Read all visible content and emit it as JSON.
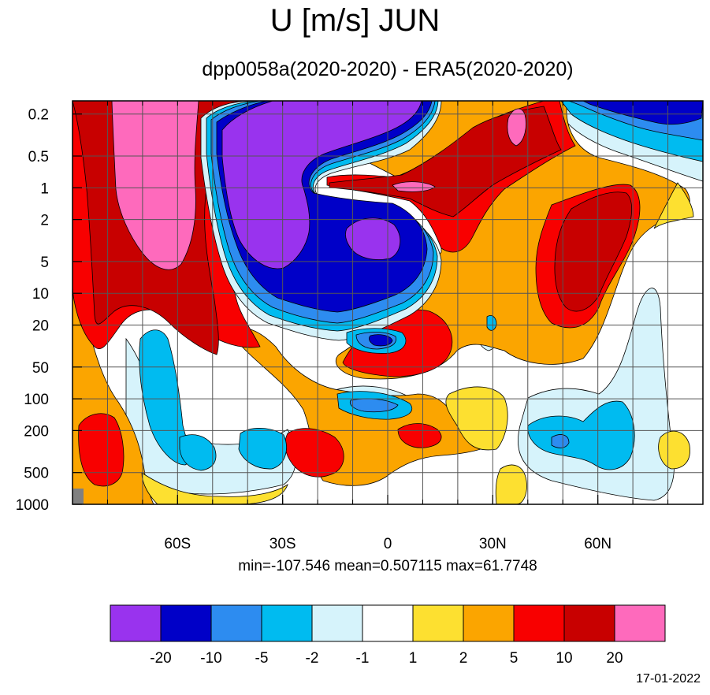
{
  "title": "U [m/s] JUN",
  "subtitle": "dpp0058a(2020-2020) - ERA5(2020-2020)",
  "stats": "min=-107.546   mean=0.507115   max=61.7748",
  "date": "17-01-2022",
  "chart_data": {
    "type": "heatmap",
    "title": "U [m/s] JUN",
    "subtitle": "dpp0058a(2020-2020) - ERA5(2020-2020)",
    "xlabel": "",
    "ylabel": "",
    "x_ticks": [
      "60S",
      "30S",
      "0",
      "30N",
      "60N"
    ],
    "x_tick_values": [
      -60,
      -30,
      0,
      30,
      60
    ],
    "xlim": [
      -90,
      90
    ],
    "y_scale": "log",
    "y_inverted": true,
    "y_ticks": [
      "0.2",
      "0.5",
      "1",
      "2",
      "5",
      "10",
      "20",
      "50",
      "100",
      "200",
      "500",
      "1000"
    ],
    "y_tick_values": [
      0.2,
      0.5,
      1,
      2,
      5,
      10,
      20,
      50,
      100,
      200,
      500,
      1000
    ],
    "ylim": [
      0.15,
      1000
    ],
    "grid": true,
    "stats": {
      "min": -107.546,
      "mean": 0.507115,
      "max": 61.7748
    },
    "colorbar": {
      "levels": [
        "-20",
        "-10",
        "-5",
        "-2",
        "-1",
        "1",
        "2",
        "5",
        "10",
        "20"
      ],
      "colors": [
        "#9933ee",
        "#0000c8",
        "#2d8cf0",
        "#00bbf0",
        "#d6f3fb",
        "#ffffff",
        "#fde030",
        "#fba500",
        "#f80000",
        "#c80000",
        "#fe6abc"
      ]
    },
    "regions": [
      {
        "level": "20+",
        "lat_range": [
          -77,
          -50
        ],
        "p_range": [
          0.15,
          4
        ]
      },
      {
        "level": "10 to 20",
        "lat_range": [
          -88,
          -40
        ],
        "p_range": [
          0.15,
          30
        ]
      },
      {
        "level": "-20-",
        "lat_range": [
          -38,
          10
        ],
        "p_range": [
          0.15,
          8
        ]
      },
      {
        "level": "-10 to -20",
        "lat_range": [
          -40,
          15
        ],
        "p_range": [
          0.15,
          15
        ]
      },
      {
        "level": "10 to 20",
        "lat_range": [
          -18,
          50
        ],
        "p_range": [
          0.8,
          4
        ]
      },
      {
        "level": "20+",
        "lat_range": [
          2,
          14
        ],
        "p_range": [
          0.8,
          1.1
        ]
      },
      {
        "level": "20+",
        "lat_range": [
          34,
          39
        ],
        "p_range": [
          0.15,
          0.3
        ]
      },
      {
        "level": "-10 to -20",
        "lat_range": [
          53,
          90
        ],
        "p_range": [
          0.15,
          0.25
        ]
      },
      {
        "level": "5 to 10",
        "lat_range": [
          47,
          70
        ],
        "p_range": [
          1,
          20
        ]
      },
      {
        "level": "-10 to -20",
        "lat_range": [
          -8,
          3
        ],
        "p_range": [
          15,
          40
        ]
      },
      {
        "level": "-2 to -5",
        "lat_range": [
          -68,
          -55
        ],
        "p_range": [
          20,
          300
        ]
      },
      {
        "level": "5 to 10",
        "lat_range": [
          -27,
          -10
        ],
        "p_range": [
          150,
          600
        ]
      },
      {
        "level": "5 to 10",
        "lat_range": [
          -86,
          -76
        ],
        "p_range": [
          150,
          800
        ]
      },
      {
        "level": "-2 to -5",
        "lat_range": [
          55,
          72
        ],
        "p_range": [
          80,
          400
        ]
      },
      {
        "level": "1 to 2",
        "lat_range": [
          78,
          86
        ],
        "p_range": [
          200,
          600
        ]
      }
    ]
  }
}
